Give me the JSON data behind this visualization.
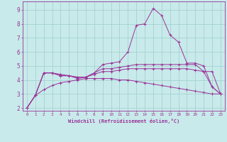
{
  "background_color": "#c8eaea",
  "line_color": "#993399",
  "grid_color": "#a0cccc",
  "xlabel": "Windchill (Refroidissement éolien,°C)",
  "xlabel_color": "#993399",
  "tick_color": "#993399",
  "xlim": [
    -0.5,
    23.5
  ],
  "ylim": [
    1.8,
    9.6
  ],
  "yticks": [
    2,
    3,
    4,
    5,
    6,
    7,
    8,
    9
  ],
  "xticks": [
    0,
    1,
    2,
    3,
    4,
    5,
    6,
    7,
    8,
    9,
    10,
    11,
    12,
    13,
    14,
    15,
    16,
    17,
    18,
    19,
    20,
    21,
    22,
    23
  ],
  "series": [
    [
      2.0,
      2.9,
      4.5,
      4.5,
      4.4,
      4.3,
      4.1,
      4.2,
      4.5,
      5.1,
      5.2,
      5.3,
      6.0,
      7.9,
      8.0,
      9.1,
      8.6,
      7.2,
      6.7,
      5.2,
      5.2,
      5.0,
      3.5,
      3.0
    ],
    [
      2.0,
      2.9,
      4.5,
      4.5,
      4.3,
      4.3,
      4.2,
      4.2,
      4.5,
      4.8,
      4.8,
      4.9,
      5.0,
      5.1,
      5.1,
      5.1,
      5.1,
      5.1,
      5.1,
      5.1,
      5.1,
      4.6,
      4.6,
      3.0
    ],
    [
      2.0,
      2.9,
      4.5,
      4.5,
      4.3,
      4.3,
      4.2,
      4.2,
      4.4,
      4.6,
      4.6,
      4.7,
      4.8,
      4.8,
      4.8,
      4.8,
      4.8,
      4.8,
      4.8,
      4.8,
      4.7,
      4.6,
      3.5,
      3.0
    ],
    [
      2.0,
      2.9,
      3.3,
      3.6,
      3.8,
      3.9,
      4.0,
      4.1,
      4.1,
      4.1,
      4.1,
      4.0,
      4.0,
      3.9,
      3.8,
      3.7,
      3.6,
      3.5,
      3.4,
      3.3,
      3.2,
      3.1,
      3.0,
      3.0
    ]
  ]
}
